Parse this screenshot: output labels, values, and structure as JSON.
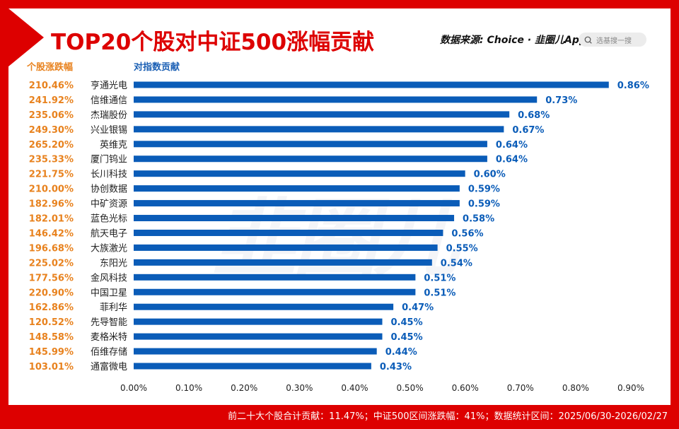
{
  "title": "TOP20个股对中证500涨幅贡献",
  "source": "数据来源: Choice · 韭圈儿App",
  "search": {
    "placeholder": "选基搜一搜"
  },
  "watermark": "韭圈儿",
  "footer": "前二十大个股合计贡献：11.47%；中证500区间涨跌幅：41%；数据统计区间：2025/06/30-2026/02/27",
  "colors": {
    "bar": "#0a5cb8",
    "change": "#e8821e",
    "frame": "#dd0000"
  },
  "chart_data": {
    "type": "bar",
    "orientation": "horizontal",
    "column_headers": [
      "个股涨跌幅",
      "对指数贡献"
    ],
    "categories": [
      "亨通光电",
      "信维通信",
      "杰瑞股份",
      "兴业银锡",
      "英维克",
      "厦门钨业",
      "长川科技",
      "协创数据",
      "中矿资源",
      "蓝色光标",
      "航天电子",
      "大族激光",
      "东阳光",
      "金风科技",
      "中国卫星",
      "菲利华",
      "先导智能",
      "麦格米特",
      "佰维存储",
      "通富微电"
    ],
    "price_change": [
      "210.46%",
      "241.92%",
      "235.06%",
      "249.30%",
      "265.20%",
      "235.33%",
      "221.75%",
      "210.00%",
      "182.96%",
      "182.01%",
      "146.42%",
      "196.68%",
      "225.02%",
      "177.56%",
      "220.90%",
      "162.86%",
      "120.52%",
      "148.58%",
      "145.99%",
      "103.01%"
    ],
    "values": [
      0.86,
      0.73,
      0.68,
      0.67,
      0.64,
      0.64,
      0.6,
      0.59,
      0.59,
      0.58,
      0.56,
      0.55,
      0.54,
      0.51,
      0.51,
      0.47,
      0.45,
      0.45,
      0.44,
      0.43
    ],
    "value_labels": [
      "0.86%",
      "0.73%",
      "0.68%",
      "0.67%",
      "0.64%",
      "0.64%",
      "0.60%",
      "0.59%",
      "0.59%",
      "0.58%",
      "0.56%",
      "0.55%",
      "0.54%",
      "0.51%",
      "0.51%",
      "0.47%",
      "0.45%",
      "0.45%",
      "0.44%",
      "0.43%"
    ],
    "xlim": [
      0,
      0.9
    ],
    "x_ticks": [
      "0.00%",
      "0.10%",
      "0.20%",
      "0.30%",
      "0.40%",
      "0.50%",
      "0.60%",
      "0.70%",
      "0.80%",
      "0.90%"
    ],
    "grid": false
  }
}
